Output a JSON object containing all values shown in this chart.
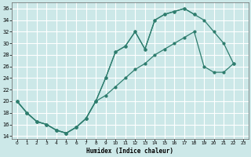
{
  "xlabel": "Humidex (Indice chaleur)",
  "bg_color": "#cce8e8",
  "grid_color": "#ffffff",
  "line_color": "#2e7d6e",
  "xlim": [
    -0.5,
    23.5
  ],
  "ylim": [
    13.5,
    37
  ],
  "xticks": [
    0,
    1,
    2,
    3,
    4,
    5,
    6,
    7,
    8,
    9,
    10,
    11,
    12,
    13,
    14,
    15,
    16,
    17,
    18,
    19,
    20,
    21,
    22,
    23
  ],
  "yticks": [
    14,
    16,
    18,
    20,
    22,
    24,
    26,
    28,
    30,
    32,
    34,
    36
  ],
  "curve1_x": [
    0,
    1,
    2,
    3,
    4,
    5,
    6,
    7,
    8,
    9,
    10,
    11,
    12,
    13,
    14,
    15,
    16,
    17,
    18
  ],
  "curve1_y": [
    20,
    18,
    16.5,
    16,
    15,
    14.5,
    15.5,
    17,
    20,
    24,
    28.5,
    29.5,
    32,
    29,
    34,
    35,
    35.5,
    36,
    35
  ],
  "curve2_x": [
    0,
    1,
    2,
    3,
    4,
    5,
    6,
    7,
    8,
    9,
    10,
    11,
    12,
    13,
    14,
    15,
    16,
    17,
    18,
    19,
    20,
    21,
    22
  ],
  "curve2_y": [
    20,
    18,
    16.5,
    16,
    15,
    14.5,
    15.5,
    17,
    20,
    24,
    28.5,
    29.5,
    32,
    29,
    34,
    35,
    35.5,
    36,
    35,
    34,
    32,
    30,
    26.5
  ],
  "curve3_x": [
    0,
    1,
    2,
    3,
    4,
    5,
    6,
    7,
    8,
    9,
    10,
    11,
    12,
    13,
    14,
    15,
    16,
    17,
    18,
    19,
    20,
    21,
    22
  ],
  "curve3_y": [
    20,
    18,
    16.5,
    16,
    15,
    14.5,
    15.5,
    17,
    20,
    21,
    22.5,
    24,
    25.5,
    26.5,
    28,
    29,
    30,
    31,
    32,
    26,
    25,
    25,
    26.5
  ]
}
